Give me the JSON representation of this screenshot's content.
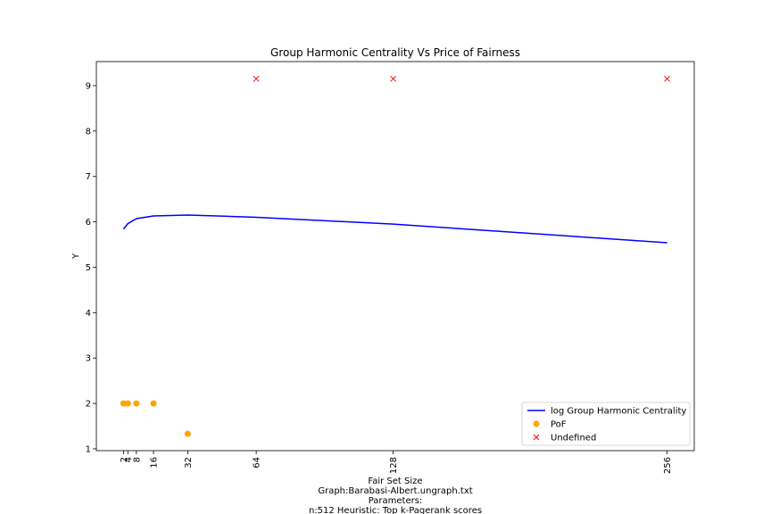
{
  "chart_data": {
    "type": "line",
    "title": "Group Harmonic Centrality Vs Price of Fairness",
    "xlabel_lines": [
      "Fair Set Size",
      "Graph:Barabasi-Albert.ungraph.txt",
      "Parameters:",
      "n:512  Heuristic: Top k-Pagerank scores"
    ],
    "ylabel": "Y",
    "xlim": [
      -10.7,
      268.7
    ],
    "ylim": [
      0.96,
      9.53
    ],
    "x_ticks": [
      2,
      4,
      8,
      16,
      32,
      64,
      128,
      256
    ],
    "y_ticks": [
      1,
      2,
      3,
      4,
      5,
      6,
      7,
      8,
      9
    ],
    "grid": false,
    "legend_position": "lower right",
    "series": [
      {
        "name": "log Group Harmonic Centrality",
        "kind": "line",
        "color": "#0000ff",
        "x": [
          2,
          4,
          8,
          16,
          32,
          64,
          128,
          256
        ],
        "y": [
          5.84,
          5.96,
          6.07,
          6.13,
          6.15,
          6.1,
          5.95,
          5.54
        ]
      },
      {
        "name": "PoF",
        "kind": "scatter-circle",
        "color": "#ffa500",
        "x": [
          2,
          4,
          8,
          16,
          32
        ],
        "y": [
          2.0,
          2.0,
          2.0,
          2.0,
          1.33
        ]
      },
      {
        "name": "Undefined",
        "kind": "scatter-x",
        "color": "#ff0000",
        "x": [
          64,
          128,
          256
        ],
        "y": [
          9.15,
          9.15,
          9.15
        ]
      }
    ]
  }
}
